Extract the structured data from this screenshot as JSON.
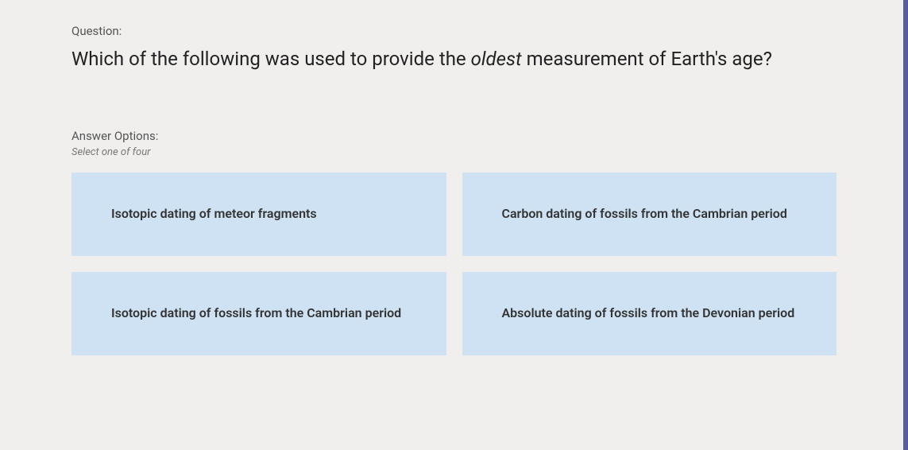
{
  "question": {
    "label": "Question:",
    "text_pre": "Which of the following was used to provide the ",
    "text_em": "oldest",
    "text_post": " measurement of Earth's age?"
  },
  "answer": {
    "label": "Answer Options:",
    "hint": "Select one of four",
    "options": [
      "Isotopic dating of meteor fragments",
      "Carbon dating of fossils from the Cambrian period",
      "Isotopic dating of fossils from the Cambrian period",
      "Absolute dating of fossils from the Devonian period"
    ]
  },
  "style": {
    "option_bg": "#cfe2f3",
    "page_bg": "#f0efee"
  }
}
